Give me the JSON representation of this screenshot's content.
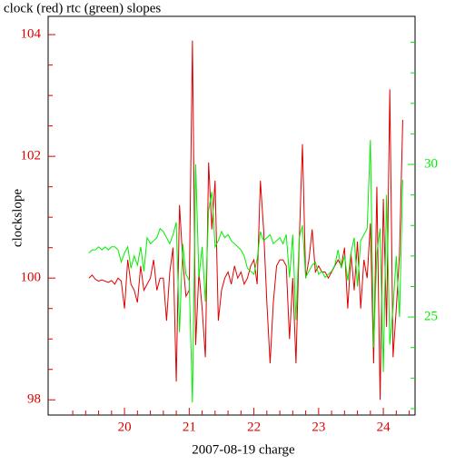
{
  "chart_data": {
    "type": "line",
    "title": "clock (red) rtc (green) slopes",
    "xlabel": "2007-08-19 charge",
    "ylabel": "clockslope",
    "x": [
      19.45,
      19.5,
      19.55,
      19.6,
      19.65,
      19.7,
      19.75,
      19.8,
      19.85,
      19.9,
      19.95,
      20.0,
      20.05,
      20.1,
      20.15,
      20.2,
      20.25,
      20.3,
      20.35,
      20.4,
      20.45,
      20.5,
      20.55,
      20.6,
      20.65,
      20.7,
      20.75,
      20.8,
      20.85,
      20.9,
      20.95,
      21.0,
      21.05,
      21.1,
      21.15,
      21.2,
      21.25,
      21.3,
      21.35,
      21.4,
      21.45,
      21.5,
      21.55,
      21.6,
      21.65,
      21.7,
      21.75,
      21.8,
      21.85,
      21.9,
      21.95,
      22.0,
      22.05,
      22.1,
      22.15,
      22.2,
      22.25,
      22.3,
      22.35,
      22.4,
      22.45,
      22.5,
      22.55,
      22.6,
      22.65,
      22.7,
      22.75,
      22.8,
      22.85,
      22.9,
      22.95,
      23.0,
      23.05,
      23.1,
      23.15,
      23.2,
      23.25,
      23.3,
      23.35,
      23.4,
      23.45,
      23.5,
      23.55,
      23.6,
      23.65,
      23.7,
      23.75,
      23.8,
      23.85,
      23.9,
      23.95,
      24.0,
      24.05,
      24.1,
      24.15,
      24.2,
      24.25,
      24.3
    ],
    "series": [
      {
        "name": "clock",
        "color": "#dd0000",
        "axis": "y",
        "values": [
          100.0,
          100.05,
          99.98,
          99.95,
          99.97,
          99.95,
          99.93,
          99.96,
          99.9,
          100.0,
          99.95,
          99.5,
          100.3,
          99.9,
          99.8,
          99.6,
          100.2,
          99.8,
          99.9,
          100.0,
          100.3,
          99.8,
          100.0,
          100.0,
          99.3,
          100.1,
          100.5,
          98.3,
          101.2,
          100.3,
          99.7,
          99.8,
          103.9,
          98.9,
          100.1,
          99.5,
          98.7,
          101.9,
          100.8,
          101.6,
          99.3,
          99.8,
          100.0,
          100.1,
          99.9,
          100.2,
          100.0,
          100.1,
          99.9,
          100.0,
          100.2,
          100.3,
          99.9,
          101.6,
          100.8,
          99.6,
          98.6,
          99.6,
          100.2,
          100.3,
          100.3,
          100.2,
          99.0,
          100.0,
          98.6,
          100.6,
          102.2,
          100.0,
          100.3,
          100.8,
          100.1,
          100.2,
          100.1,
          100.1,
          100.0,
          100.1,
          100.2,
          100.3,
          100.2,
          100.5,
          99.5,
          100.4,
          99.8,
          100.6,
          99.5,
          100.3,
          100.0,
          100.9,
          98.6,
          101.5,
          98.0,
          101.3,
          99.2,
          103.1,
          98.7,
          99.5,
          100.4,
          102.6
        ]
      },
      {
        "name": "rtc",
        "color": "#00ee00",
        "axis": "y2",
        "values": [
          27.1,
          27.2,
          27.2,
          27.3,
          27.2,
          27.3,
          27.2,
          27.3,
          27.3,
          27.2,
          26.8,
          27.1,
          27.3,
          26.6,
          27.0,
          26.7,
          27.3,
          26.5,
          27.6,
          27.4,
          27.5,
          27.6,
          27.9,
          27.8,
          27.6,
          27.4,
          27.7,
          28.1,
          24.5,
          27.4,
          26.4,
          26.2,
          22.2,
          30.0,
          26.3,
          27.3,
          25.5,
          28.5,
          29.1,
          27.3,
          27.5,
          27.8,
          27.6,
          27.7,
          27.5,
          27.4,
          27.3,
          27.2,
          27.0,
          26.6,
          26.5,
          26.4,
          26.9,
          27.8,
          27.5,
          27.6,
          27.7,
          27.4,
          27.5,
          27.6,
          27.4,
          27.7,
          26.3,
          27.7,
          24.9,
          27.6,
          28.0,
          26.3,
          26.5,
          26.7,
          26.8,
          26.4,
          26.5,
          26.3,
          26.4,
          26.5,
          26.7,
          27.2,
          26.6,
          27.0,
          26.2,
          27.1,
          27.6,
          26.0,
          27.5,
          27.7,
          27.9,
          30.8,
          24.0,
          27.1,
          27.9,
          23.2,
          29.0,
          24.1,
          25.3,
          27.0,
          25.0,
          29.5
        ]
      }
    ],
    "xlim": [
      18.82,
      24.49
    ],
    "xticks": [
      20,
      21,
      22,
      23,
      24
    ],
    "xminorticks": [
      19.2,
      19.4,
      19.6,
      19.8,
      20.2,
      20.4,
      20.6,
      20.8,
      21.2,
      21.4,
      21.6,
      21.8,
      22.2,
      22.4,
      22.6,
      22.8,
      23.2,
      23.4,
      23.6,
      23.8,
      24.2,
      24.4
    ],
    "ylim": [
      97.75,
      104.3
    ],
    "yticks": [
      98,
      100,
      102,
      104
    ],
    "yminorticks": [
      98.5,
      99,
      99.5,
      100.5,
      101,
      101.5,
      102.5,
      103,
      103.5
    ],
    "y2lim": [
      21.79,
      34.85
    ],
    "y2ticks": [
      25,
      30
    ],
    "y2minorticks": [
      22,
      23,
      24,
      26,
      27,
      28,
      29,
      31,
      32,
      33,
      34
    ],
    "ytick_color": "#dd0000",
    "y2tick_color": "#00ee00",
    "xtick_color": "#dd0000"
  }
}
